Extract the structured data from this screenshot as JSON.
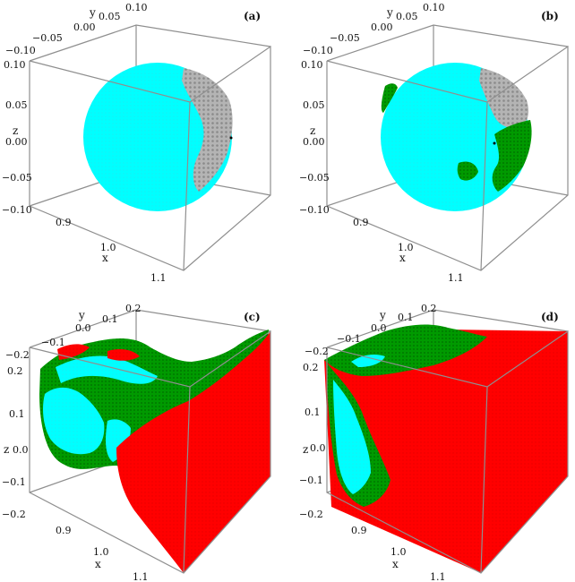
{
  "chart_data": [
    {
      "type": "scatter",
      "panel_label": "(a)",
      "shape": "sphere",
      "xlabel": "x",
      "ylabel": "y",
      "zlabel": "z",
      "xlim": [
        0.85,
        1.15
      ],
      "ylim": [
        -0.15,
        0.15
      ],
      "zlim": [
        -0.15,
        0.15
      ],
      "x_ticks": [
        "0.9",
        "1.0",
        "1.1"
      ],
      "y_ticks": [
        "−0.10",
        "−0.05",
        "0.00",
        "0.05",
        "0.10"
      ],
      "z_ticks": [
        "0.10",
        "0.05",
        "0.00",
        "−0.05",
        "−0.10"
      ],
      "regions": [
        {
          "color": "#00ffff",
          "share": 0.86
        },
        {
          "color": "#a0a0a0",
          "share": 0.14
        }
      ]
    },
    {
      "type": "scatter",
      "panel_label": "(b)",
      "shape": "sphere",
      "xlabel": "x",
      "ylabel": "y",
      "zlabel": "z",
      "xlim": [
        0.85,
        1.15
      ],
      "ylim": [
        -0.15,
        0.15
      ],
      "zlim": [
        -0.15,
        0.15
      ],
      "x_ticks": [
        "0.9",
        "1.0",
        "1.1"
      ],
      "y_ticks": [
        "−0.10",
        "−0.05",
        "0.00",
        "0.05",
        "0.10"
      ],
      "z_ticks": [
        "0.10",
        "0.05",
        "0.00",
        "−0.05",
        "−0.10"
      ],
      "regions": [
        {
          "color": "#00ffff",
          "share": 0.78
        },
        {
          "color": "#a0a0a0",
          "share": 0.12
        },
        {
          "color": "#008c00",
          "share": 0.1
        }
      ]
    },
    {
      "type": "scatter",
      "panel_label": "(c)",
      "shape": "warped-box",
      "xlabel": "x",
      "ylabel": "y",
      "zlabel": "z",
      "xlim": [
        0.8,
        1.2
      ],
      "ylim": [
        -0.25,
        0.25
      ],
      "zlim": [
        -0.25,
        0.25
      ],
      "x_ticks": [
        "0.9",
        "1.0",
        "1.1"
      ],
      "y_ticks": [
        "−0.2",
        "−0.1",
        "0.0",
        "0.1",
        "0.2"
      ],
      "z_ticks": [
        "0.2",
        "0.1",
        "0.0",
        "−0.1",
        "−0.2"
      ],
      "regions": [
        {
          "color": "#ff0000",
          "share": 0.55
        },
        {
          "color": "#008c00",
          "share": 0.28
        },
        {
          "color": "#00ffff",
          "share": 0.17
        }
      ]
    },
    {
      "type": "scatter",
      "panel_label": "(d)",
      "shape": "box",
      "xlabel": "x",
      "ylabel": "y",
      "zlabel": "z",
      "xlim": [
        0.8,
        1.2
      ],
      "ylim": [
        -0.25,
        0.25
      ],
      "zlim": [
        -0.25,
        0.25
      ],
      "x_ticks": [
        "0.9",
        "1.0",
        "1.1"
      ],
      "y_ticks": [
        "−0.2",
        "−0.1",
        "0.0",
        "0.1",
        "0.2"
      ],
      "z_ticks": [
        "0.2",
        "0.1",
        "0.0",
        "−0.1",
        "−0.2"
      ],
      "regions": [
        {
          "color": "#ff0000",
          "share": 0.84
        },
        {
          "color": "#008c00",
          "share": 0.11
        },
        {
          "color": "#00ffff",
          "share": 0.05
        }
      ]
    }
  ]
}
